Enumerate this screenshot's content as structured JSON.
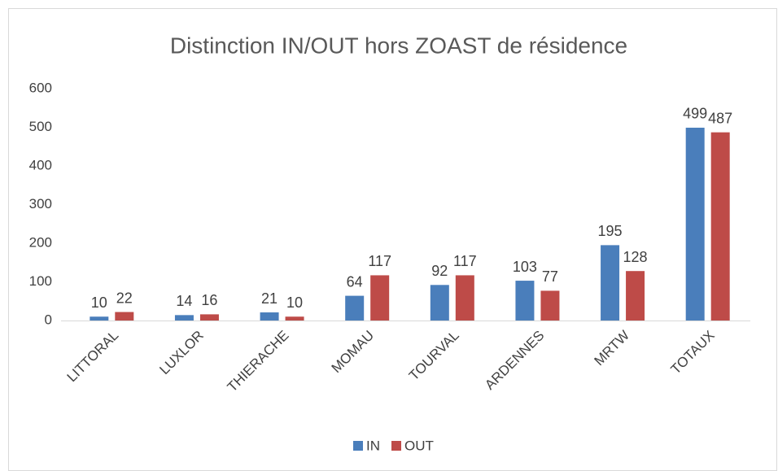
{
  "chart_data": {
    "type": "bar",
    "title": "Distinction IN/OUT hors ZOAST de résidence",
    "categories": [
      "LITTORAL",
      "LUXLOR",
      "THIERACHE",
      "MOMAU",
      "TOURVAL",
      "ARDENNES",
      "MRTW",
      "TOTAUX"
    ],
    "series": [
      {
        "name": "IN",
        "color": "#4a7ebb",
        "values": [
          10,
          14,
          21,
          64,
          92,
          103,
          195,
          499
        ]
      },
      {
        "name": "OUT",
        "color": "#be4b48",
        "values": [
          22,
          16,
          10,
          117,
          117,
          77,
          128,
          487
        ]
      }
    ],
    "ylim": [
      0,
      600
    ],
    "yticks": [
      0,
      100,
      200,
      300,
      400,
      500,
      600
    ],
    "grid": false,
    "legend": "bottom"
  }
}
